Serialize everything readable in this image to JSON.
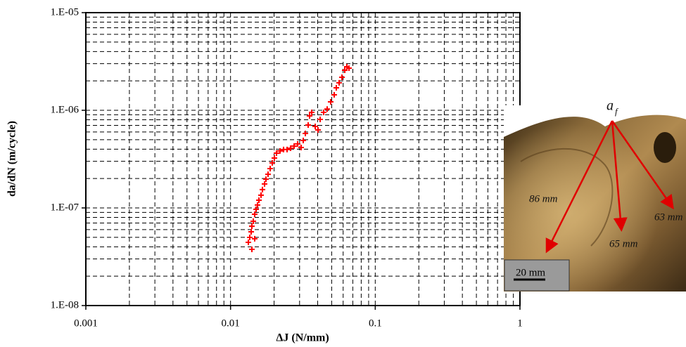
{
  "chart_data": {
    "type": "scatter",
    "xlabel": "ΔJ (N/mm)",
    "ylabel": "da/dN (m/cycle)",
    "xscale": "log",
    "yscale": "log",
    "grid": true,
    "xlim": [
      0.001,
      1
    ],
    "ylim": [
      1e-08,
      1e-05
    ],
    "xticks": [
      0.001,
      0.01,
      0.1,
      1
    ],
    "yticks": [
      {
        "value": 1e-08,
        "label": "1.E-08"
      },
      {
        "value": 1e-07,
        "label": "1.E-07"
      },
      {
        "value": 1e-06,
        "label": "1.E-06"
      },
      {
        "value": 1e-05,
        "label": "1.E-05"
      }
    ],
    "xminor": [
      0.002,
      0.003,
      0.004,
      0.005,
      0.006,
      0.007,
      0.008,
      0.009,
      0.02,
      0.03,
      0.04,
      0.05,
      0.06,
      0.07,
      0.08,
      0.09,
      0.2,
      0.3,
      0.4,
      0.5,
      0.6,
      0.7,
      0.8,
      0.9
    ],
    "yminor": [
      2e-08,
      3e-08,
      4e-08,
      5e-08,
      6e-08,
      7e-08,
      8e-08,
      9e-08,
      2e-07,
      3e-07,
      4e-07,
      5e-07,
      6e-07,
      7e-07,
      8e-07,
      9e-07,
      2e-06,
      3e-06,
      4e-06,
      5e-06,
      6e-06,
      7e-06,
      8e-06,
      9e-06
    ],
    "series": [
      {
        "color": "#ff0000",
        "x": [
          0.01328,
          0.01358,
          0.01389,
          0.01404,
          0.01436,
          0.01468,
          0.01502,
          0.01536,
          0.01571,
          0.01624,
          0.01661,
          0.01718,
          0.01757,
          0.01816,
          0.01879,
          0.01943,
          0.02009,
          0.02078,
          0.02198,
          0.02324,
          0.02458,
          0.026,
          0.02749,
          0.02907,
          0.03074,
          0.0318,
          0.03289,
          0.03439,
          0.03517,
          0.03638,
          0.03847,
          0.04023,
          0.0416,
          0.04399,
          0.04652,
          0.0492,
          0.05203,
          0.0538,
          0.05627,
          0.05888,
          0.06157,
          0.06366,
          0.06584,
          0.01404,
          0.01468
        ],
        "values": [
          4.44e-08,
          4.99e-08,
          5.69e-08,
          6.5e-08,
          7.3e-08,
          8.62e-08,
          9.67e-08,
          1.07e-07,
          1.2e-07,
          1.35e-07,
          1.54e-07,
          1.76e-07,
          1.97e-07,
          2.21e-07,
          2.53e-07,
          2.89e-07,
          3.24e-07,
          3.64e-07,
          3.83e-07,
          3.96e-07,
          3.96e-07,
          4.09e-07,
          4.3e-07,
          4.52e-07,
          4.16e-07,
          4.91e-07,
          5.79e-07,
          7.06e-07,
          8.76e-07,
          9.51e-07,
          6.83e-07,
          6.29e-07,
          8.06e-07,
          9.51e-07,
          1.03e-06,
          1.22e-06,
          1.44e-06,
          1.7e-06,
          1.91e-06,
          2.18e-06,
          2.57e-06,
          2.79e-06,
          2.7e-06,
          3.76e-08,
          4.83e-08
        ]
      }
    ],
    "photo_labels": {
      "crack_front": "a",
      "crack_front_sub": "f",
      "depths": [
        "86 mm",
        "65 mm",
        "63 mm"
      ],
      "scale_bar": "20 mm"
    }
  }
}
